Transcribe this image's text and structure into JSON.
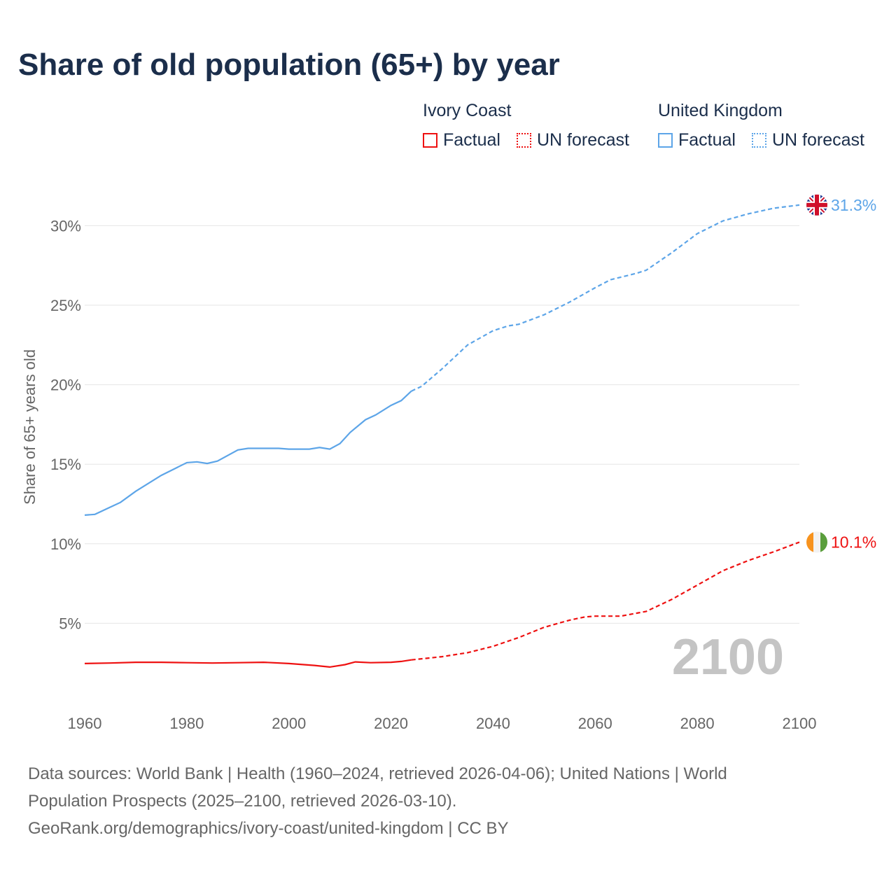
{
  "chart_data": {
    "type": "line",
    "title": "Share of old population (65+) by year",
    "ylabel": "Share of 65+ years old",
    "xlabel": "",
    "xlim": [
      1960,
      2100
    ],
    "ylim": [
      0,
      32
    ],
    "x_ticks": [
      "1960",
      "1980",
      "2000",
      "2020",
      "2040",
      "2060",
      "2080",
      "2100"
    ],
    "y_ticks": [
      "5%",
      "10%",
      "15%",
      "20%",
      "25%",
      "30%"
    ],
    "grid": true,
    "year_watermark": "2100",
    "legend": {
      "placement": "top-right",
      "groups": [
        {
          "name": "Ivory Coast",
          "factual": "Factual",
          "forecast": "UN forecast"
        },
        {
          "name": "United Kingdom",
          "factual": "Factual",
          "forecast": "UN forecast"
        }
      ]
    },
    "series": [
      {
        "name": "United Kingdom",
        "color": "#5da5e8",
        "end_label": "31.3%",
        "flag": "uk-flag",
        "factual": [
          [
            1960,
            11.8
          ],
          [
            1962,
            11.85
          ],
          [
            1965,
            12.3
          ],
          [
            1967,
            12.6
          ],
          [
            1970,
            13.3
          ],
          [
            1975,
            14.3
          ],
          [
            1980,
            15.1
          ],
          [
            1982,
            15.15
          ],
          [
            1984,
            15.05
          ],
          [
            1986,
            15.2
          ],
          [
            1990,
            15.9
          ],
          [
            1992,
            16.0
          ],
          [
            1995,
            16.0
          ],
          [
            1998,
            16.0
          ],
          [
            2000,
            15.95
          ],
          [
            2004,
            15.95
          ],
          [
            2006,
            16.05
          ],
          [
            2008,
            15.95
          ],
          [
            2010,
            16.3
          ],
          [
            2012,
            17.0
          ],
          [
            2015,
            17.8
          ],
          [
            2017,
            18.1
          ],
          [
            2020,
            18.7
          ],
          [
            2022,
            19.0
          ],
          [
            2024,
            19.6
          ]
        ],
        "forecast": [
          [
            2024,
            19.6
          ],
          [
            2026,
            19.9
          ],
          [
            2030,
            21.0
          ],
          [
            2035,
            22.5
          ],
          [
            2040,
            23.4
          ],
          [
            2043,
            23.7
          ],
          [
            2045,
            23.8
          ],
          [
            2050,
            24.4
          ],
          [
            2055,
            25.2
          ],
          [
            2060,
            26.1
          ],
          [
            2063,
            26.6
          ],
          [
            2068,
            27.0
          ],
          [
            2070,
            27.2
          ],
          [
            2075,
            28.3
          ],
          [
            2080,
            29.5
          ],
          [
            2085,
            30.3
          ],
          [
            2090,
            30.75
          ],
          [
            2095,
            31.1
          ],
          [
            2100,
            31.3
          ]
        ]
      },
      {
        "name": "Ivory Coast",
        "color": "#ee1111",
        "end_label": "10.1%",
        "flag": "ivory-coast-flag",
        "factual": [
          [
            1960,
            2.47
          ],
          [
            1965,
            2.5
          ],
          [
            1970,
            2.55
          ],
          [
            1975,
            2.55
          ],
          [
            1980,
            2.52
          ],
          [
            1985,
            2.5
          ],
          [
            1990,
            2.52
          ],
          [
            1995,
            2.55
          ],
          [
            2000,
            2.47
          ],
          [
            2005,
            2.35
          ],
          [
            2008,
            2.25
          ],
          [
            2011,
            2.4
          ],
          [
            2013,
            2.57
          ],
          [
            2016,
            2.52
          ],
          [
            2020,
            2.55
          ],
          [
            2022,
            2.6
          ],
          [
            2024,
            2.7
          ]
        ],
        "forecast": [
          [
            2024,
            2.7
          ],
          [
            2030,
            2.9
          ],
          [
            2035,
            3.15
          ],
          [
            2040,
            3.55
          ],
          [
            2045,
            4.1
          ],
          [
            2050,
            4.75
          ],
          [
            2055,
            5.2
          ],
          [
            2058,
            5.4
          ],
          [
            2060,
            5.45
          ],
          [
            2065,
            5.45
          ],
          [
            2070,
            5.75
          ],
          [
            2075,
            6.5
          ],
          [
            2080,
            7.4
          ],
          [
            2085,
            8.3
          ],
          [
            2090,
            8.95
          ],
          [
            2095,
            9.5
          ],
          [
            2100,
            10.1
          ]
        ]
      }
    ]
  },
  "source": {
    "line1": "Data sources: World Bank | Health (1960–2024, retrieved 2026-04-06); United Nations | World",
    "line2": "Population Prospects (2025–2100, retrieved 2026-03-10).",
    "line3": "GeoRank.org/demographics/ivory-coast/united-kingdom | CC BY"
  }
}
